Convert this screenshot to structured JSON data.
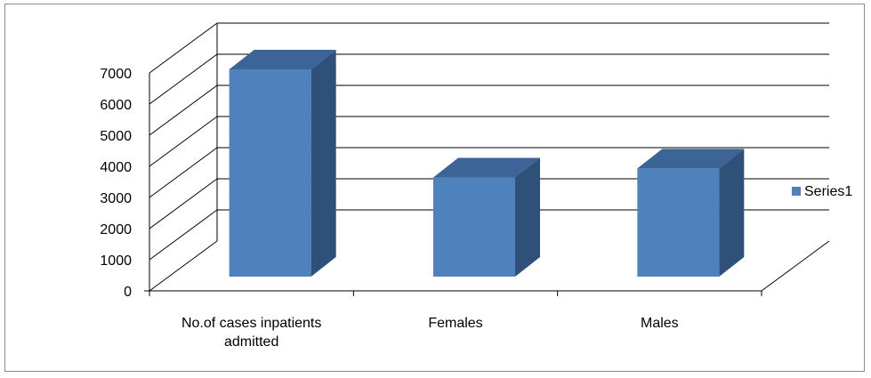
{
  "chart_data": {
    "type": "bar",
    "style": "3d-column",
    "categories": [
      [
        "No.of cases inpatients",
        "admitted"
      ],
      [
        "Females"
      ],
      [
        "Males"
      ]
    ],
    "series": [
      {
        "name": "Series1",
        "values": [
          6900,
          3300,
          3600
        ],
        "color": "#4F81BD"
      }
    ],
    "ylim": [
      0,
      7000
    ],
    "yticks": [
      0,
      1000,
      2000,
      3000,
      4000,
      5000,
      6000,
      7000
    ],
    "grid": true,
    "legend_position": "right"
  },
  "colors": {
    "bar_front": "#4F81BD",
    "bar_top": "#3C6496",
    "bar_side": "#2F5079",
    "gridline": "#000000"
  }
}
